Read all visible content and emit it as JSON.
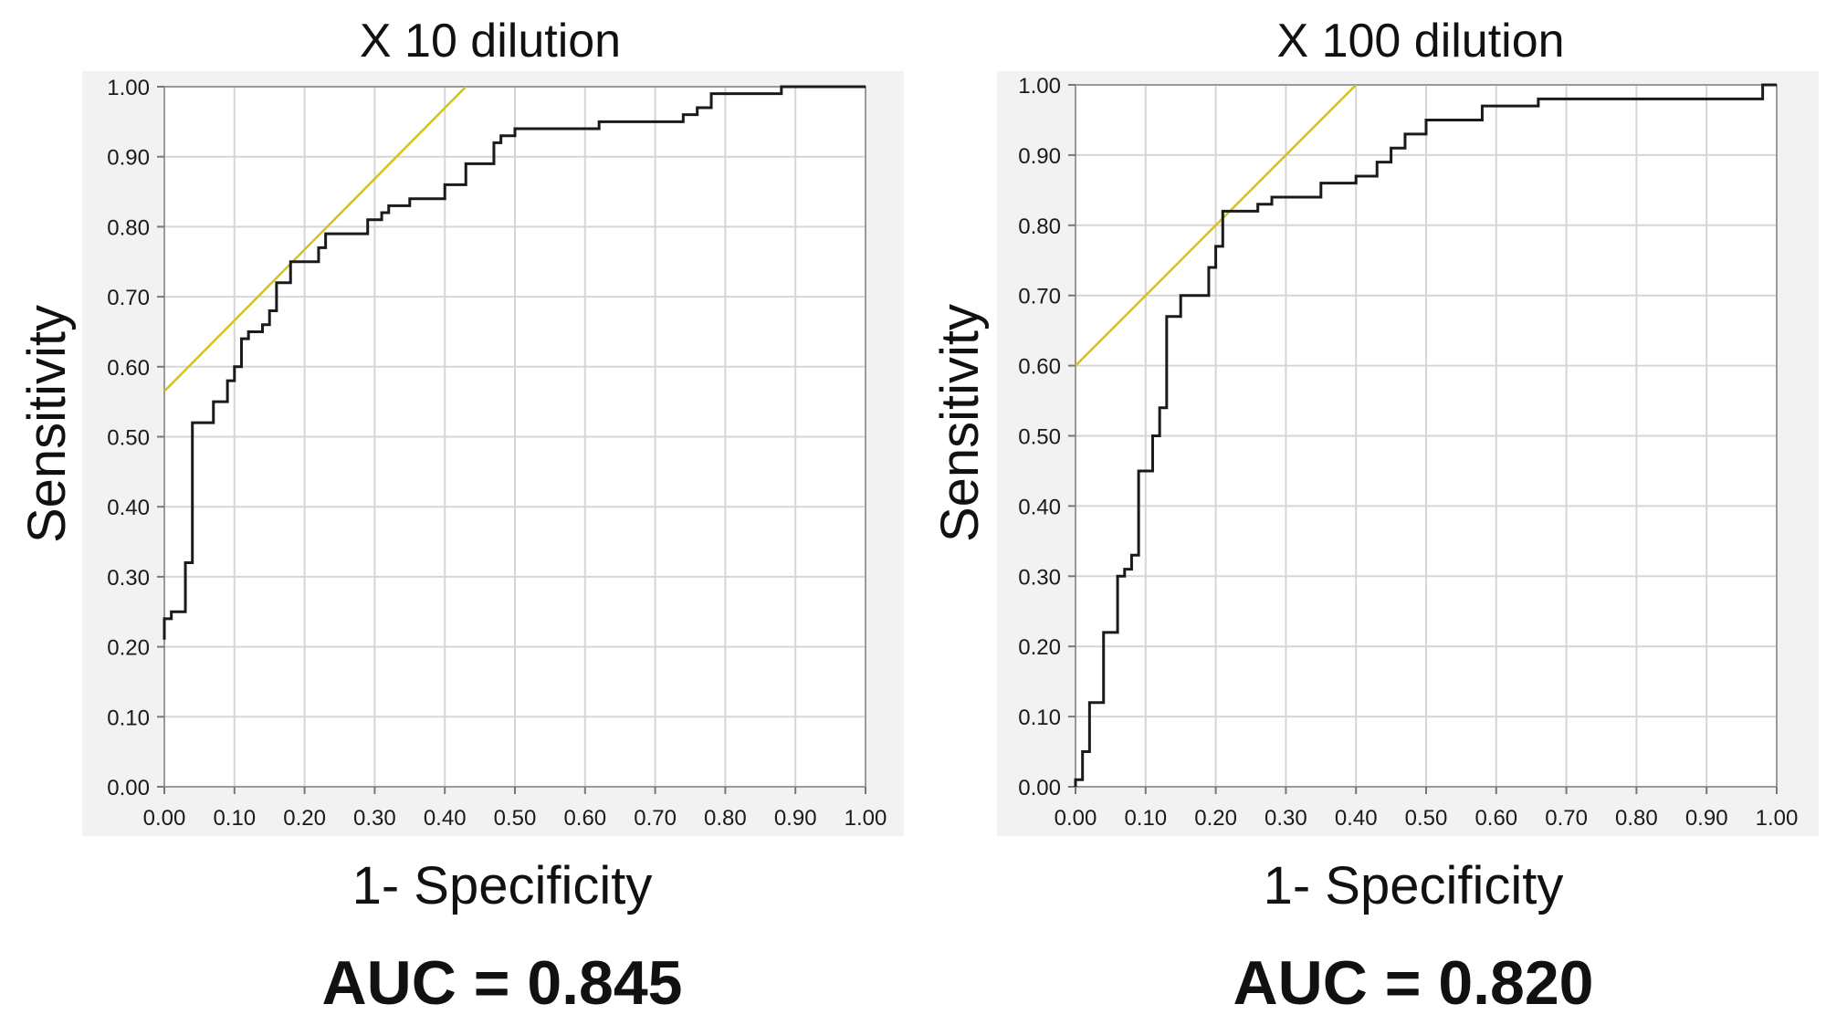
{
  "chart_data": [
    {
      "type": "line",
      "title": "X 10 dilution",
      "xlabel": "1- Specificity",
      "ylabel": "Sensitivity",
      "annotation": "AUC = 0.845",
      "xlim": [
        0,
        1
      ],
      "ylim": [
        0,
        1
      ],
      "xticks": [
        "0.00",
        "0.10",
        "0.20",
        "0.30",
        "0.40",
        "0.50",
        "0.60",
        "0.70",
        "0.80",
        "0.90",
        "1.00"
      ],
      "yticks": [
        "0.00",
        "0.10",
        "0.20",
        "0.30",
        "0.40",
        "0.50",
        "0.60",
        "0.70",
        "0.80",
        "0.90",
        "1.00"
      ],
      "grid": true,
      "colors": {
        "roc": "#1a1a1a",
        "reference": "#d4c21e",
        "plot_bg": "#ffffff",
        "frame_bg": "#f2f2f2",
        "grid": "#d6d6d6"
      },
      "series": [
        {
          "x": [
            0.0,
            0.0,
            0.01,
            0.01,
            0.03,
            0.03,
            0.04,
            0.04,
            0.05,
            0.05,
            0.07,
            0.07,
            0.09,
            0.09,
            0.1,
            0.1,
            0.11,
            0.11,
            0.12,
            0.12,
            0.14,
            0.14,
            0.15,
            0.15,
            0.16,
            0.16,
            0.18,
            0.18,
            0.19,
            0.19,
            0.22,
            0.22,
            0.23,
            0.23,
            0.25,
            0.25,
            0.29,
            0.29,
            0.31,
            0.31,
            0.32,
            0.32,
            0.35,
            0.35,
            0.4,
            0.4,
            0.43,
            0.43,
            0.47,
            0.47,
            0.48,
            0.48,
            0.5,
            0.5,
            0.62,
            0.62,
            0.68,
            0.68,
            0.74,
            0.74,
            0.76,
            0.76,
            0.78,
            0.78,
            0.88,
            0.88,
            1.0
          ],
          "y": [
            0.21,
            0.24,
            0.24,
            0.25,
            0.25,
            0.32,
            0.32,
            0.52,
            0.52,
            0.52,
            0.52,
            0.55,
            0.55,
            0.58,
            0.58,
            0.6,
            0.6,
            0.64,
            0.64,
            0.65,
            0.65,
            0.66,
            0.66,
            0.68,
            0.68,
            0.72,
            0.72,
            0.75,
            0.75,
            0.75,
            0.75,
            0.77,
            0.77,
            0.79,
            0.79,
            0.79,
            0.79,
            0.81,
            0.81,
            0.82,
            0.82,
            0.83,
            0.83,
            0.84,
            0.84,
            0.86,
            0.86,
            0.89,
            0.89,
            0.92,
            0.92,
            0.93,
            0.93,
            0.94,
            0.94,
            0.95,
            0.95,
            0.95,
            0.95,
            0.96,
            0.96,
            0.97,
            0.97,
            0.99,
            0.99,
            1.0,
            1.0
          ]
        },
        {
          "x": [
            0.0,
            0.43
          ],
          "y": [
            0.565,
            1.0
          ]
        }
      ]
    },
    {
      "type": "line",
      "title": "X 100 dilution",
      "xlabel": "1- Specificity",
      "ylabel": "Sensitivity",
      "annotation": "AUC = 0.820",
      "xlim": [
        0,
        1
      ],
      "ylim": [
        0,
        1
      ],
      "xticks": [
        "0.00",
        "0.10",
        "0.20",
        "0.30",
        "0.40",
        "0.50",
        "0.60",
        "0.70",
        "0.80",
        "0.90",
        "1.00"
      ],
      "yticks": [
        "0.00",
        "0.10",
        "0.20",
        "0.30",
        "0.40",
        "0.50",
        "0.60",
        "0.70",
        "0.80",
        "0.90",
        "1.00"
      ],
      "grid": true,
      "colors": {
        "roc": "#1a1a1a",
        "reference": "#d4c21e",
        "plot_bg": "#ffffff",
        "frame_bg": "#f2f2f2",
        "grid": "#d6d6d6"
      },
      "series": [
        {
          "x": [
            0.0,
            0.0,
            0.01,
            0.01,
            0.02,
            0.02,
            0.04,
            0.04,
            0.06,
            0.06,
            0.07,
            0.07,
            0.08,
            0.08,
            0.09,
            0.09,
            0.11,
            0.11,
            0.12,
            0.12,
            0.13,
            0.13,
            0.14,
            0.14,
            0.15,
            0.15,
            0.17,
            0.17,
            0.19,
            0.19,
            0.2,
            0.2,
            0.21,
            0.21,
            0.22,
            0.22,
            0.26,
            0.26,
            0.28,
            0.28,
            0.35,
            0.35,
            0.37,
            0.37,
            0.4,
            0.4,
            0.43,
            0.43,
            0.45,
            0.45,
            0.47,
            0.47,
            0.5,
            0.5,
            0.58,
            0.58,
            0.66,
            0.66,
            0.69,
            0.69,
            0.98,
            0.98,
            1.0
          ],
          "y": [
            0.0,
            0.01,
            0.01,
            0.05,
            0.05,
            0.12,
            0.12,
            0.22,
            0.22,
            0.3,
            0.3,
            0.31,
            0.31,
            0.33,
            0.33,
            0.45,
            0.45,
            0.5,
            0.5,
            0.54,
            0.54,
            0.67,
            0.67,
            0.67,
            0.67,
            0.7,
            0.7,
            0.7,
            0.7,
            0.74,
            0.74,
            0.77,
            0.77,
            0.82,
            0.82,
            0.82,
            0.82,
            0.83,
            0.83,
            0.84,
            0.84,
            0.86,
            0.86,
            0.86,
            0.86,
            0.87,
            0.87,
            0.89,
            0.89,
            0.91,
            0.91,
            0.93,
            0.93,
            0.95,
            0.95,
            0.97,
            0.97,
            0.98,
            0.98,
            0.98,
            0.98,
            1.0,
            1.0
          ]
        },
        {
          "x": [
            0.0,
            0.4
          ],
          "y": [
            0.6,
            1.0
          ]
        }
      ]
    }
  ]
}
